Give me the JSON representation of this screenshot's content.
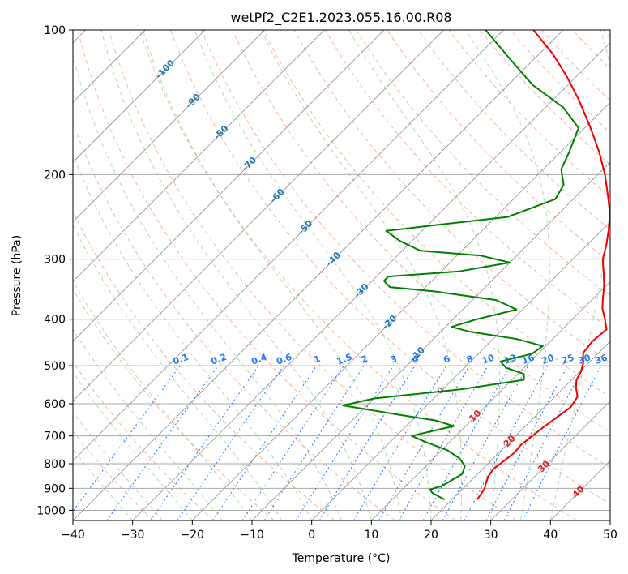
{
  "chart_data": {
    "type": "line",
    "title": "wetPf2_C2E1.2023.055.16.00.R08",
    "xlabel": "Temperature (°C)",
    "ylabel": "Pressure (hPa)",
    "xlim": [
      -40,
      50
    ],
    "ylim_hpa": [
      1050,
      100
    ],
    "y_scale": "log",
    "skew_degrees": 45,
    "x_ticks": [
      -40,
      -30,
      -20,
      -10,
      0,
      10,
      20,
      30,
      40,
      50
    ],
    "y_ticks": [
      100,
      200,
      300,
      400,
      500,
      600,
      700,
      800,
      900,
      1000
    ],
    "grid": true,
    "colors": {
      "temperature": "#ee0000",
      "dewpoint": "#008000",
      "isotherm": "#8c8c8c",
      "dry_adiabat": "#f4a37f",
      "moist_adiabat": "#77c777",
      "mixing_ratio": "#1e78ff",
      "pressure_grid": "#aaaaaa"
    },
    "series": [
      {
        "role": "temperature",
        "points": [
          {
            "p": 950,
            "t": 24.2
          },
          {
            "p": 930,
            "t": 24.0
          },
          {
            "p": 900,
            "t": 23.6
          },
          {
            "p": 880,
            "t": 23.0
          },
          {
            "p": 850,
            "t": 22.2
          },
          {
            "p": 820,
            "t": 21.8
          },
          {
            "p": 790,
            "t": 22.2
          },
          {
            "p": 760,
            "t": 22.6
          },
          {
            "p": 730,
            "t": 22.4
          },
          {
            "p": 700,
            "t": 22.8
          },
          {
            "p": 670,
            "t": 23.2
          },
          {
            "p": 640,
            "t": 23.8
          },
          {
            "p": 610,
            "t": 24.4
          },
          {
            "p": 580,
            "t": 23.8
          },
          {
            "p": 555,
            "t": 22.0
          },
          {
            "p": 535,
            "t": 20.8
          },
          {
            "p": 515,
            "t": 20.2
          },
          {
            "p": 495,
            "t": 19.2
          },
          {
            "p": 470,
            "t": 17.4
          },
          {
            "p": 445,
            "t": 17.0
          },
          {
            "p": 420,
            "t": 17.4
          },
          {
            "p": 400,
            "t": 15.4
          },
          {
            "p": 380,
            "t": 13.2
          },
          {
            "p": 360,
            "t": 11.4
          },
          {
            "p": 340,
            "t": 9.6
          },
          {
            "p": 320,
            "t": 7.4
          },
          {
            "p": 300,
            "t": 5.0
          },
          {
            "p": 280,
            "t": 3.2
          },
          {
            "p": 260,
            "t": 1.0
          },
          {
            "p": 240,
            "t": -1.6
          },
          {
            "p": 220,
            "t": -5.0
          },
          {
            "p": 200,
            "t": -8.8
          },
          {
            "p": 180,
            "t": -13.4
          },
          {
            "p": 160,
            "t": -19.0
          },
          {
            "p": 140,
            "t": -25.6
          },
          {
            "p": 125,
            "t": -31.6
          },
          {
            "p": 112,
            "t": -37.8
          },
          {
            "p": 100,
            "t": -45.0
          }
        ]
      },
      {
        "role": "dewpoint",
        "points": [
          {
            "p": 950,
            "t": 18.8
          },
          {
            "p": 935,
            "t": 17.2
          },
          {
            "p": 920,
            "t": 15.6
          },
          {
            "p": 905,
            "t": 14.6
          },
          {
            "p": 890,
            "t": 16.0
          },
          {
            "p": 870,
            "t": 16.6
          },
          {
            "p": 840,
            "t": 17.4
          },
          {
            "p": 810,
            "t": 16.6
          },
          {
            "p": 780,
            "t": 14.4
          },
          {
            "p": 750,
            "t": 11.0
          },
          {
            "p": 720,
            "t": 5.8
          },
          {
            "p": 700,
            "t": 2.6
          },
          {
            "p": 685,
            "t": 5.0
          },
          {
            "p": 668,
            "t": 8.0
          },
          {
            "p": 650,
            "t": 4.0
          },
          {
            "p": 630,
            "t": -4.0
          },
          {
            "p": 605,
            "t": -14.0
          },
          {
            "p": 585,
            "t": -10.0
          },
          {
            "p": 560,
            "t": 3.0
          },
          {
            "p": 535,
            "t": 12.0
          },
          {
            "p": 520,
            "t": 11.0
          },
          {
            "p": 505,
            "t": 7.0
          },
          {
            "p": 490,
            "t": 5.0
          },
          {
            "p": 472,
            "t": 9.0
          },
          {
            "p": 455,
            "t": 9.5
          },
          {
            "p": 440,
            "t": 4.0
          },
          {
            "p": 425,
            "t": -5.0
          },
          {
            "p": 415,
            "t": -9.0
          },
          {
            "p": 400,
            "t": -6.0
          },
          {
            "p": 382,
            "t": -1.0
          },
          {
            "p": 365,
            "t": -6.0
          },
          {
            "p": 350,
            "t": -18.0
          },
          {
            "p": 343,
            "t": -26.0
          },
          {
            "p": 333,
            "t": -28.0
          },
          {
            "p": 326,
            "t": -28.0
          },
          {
            "p": 318,
            "t": -17.0
          },
          {
            "p": 305,
            "t": -10.0
          },
          {
            "p": 295,
            "t": -16.0
          },
          {
            "p": 288,
            "t": -27.0
          },
          {
            "p": 275,
            "t": -32.0
          },
          {
            "p": 262,
            "t": -36.0
          },
          {
            "p": 255,
            "t": -29.0
          },
          {
            "p": 245,
            "t": -18.0
          },
          {
            "p": 225,
            "t": -13.0
          },
          {
            "p": 210,
            "t": -14.0
          },
          {
            "p": 195,
            "t": -17.0
          },
          {
            "p": 180,
            "t": -18.5
          },
          {
            "p": 160,
            "t": -21.0
          },
          {
            "p": 145,
            "t": -27.0
          },
          {
            "p": 130,
            "t": -36.0
          },
          {
            "p": 115,
            "t": -44.0
          },
          {
            "p": 100,
            "t": -53.0
          }
        ]
      }
    ],
    "isotherm_labels": [
      {
        "t": -100,
        "text": "-100"
      },
      {
        "t": -90,
        "text": "-90"
      },
      {
        "t": -80,
        "text": "-80"
      },
      {
        "t": -70,
        "text": "-70"
      },
      {
        "t": -60,
        "text": "-60"
      },
      {
        "t": -50,
        "text": "-50"
      },
      {
        "t": -40,
        "text": "-40"
      },
      {
        "t": -30,
        "text": "-30"
      },
      {
        "t": -20,
        "text": "-20"
      },
      {
        "t": -10,
        "text": "-10"
      },
      {
        "t": 0,
        "text": "0"
      },
      {
        "t": 10,
        "text": "10"
      },
      {
        "t": 20,
        "text": "20"
      },
      {
        "t": 30,
        "text": "30"
      },
      {
        "t": 40,
        "text": "40"
      }
    ],
    "mixing_ratio_labels": [
      "0.1",
      "0.2",
      "0.4",
      "0.6",
      "1",
      "1.5",
      "2",
      "3",
      "4",
      "6",
      "8",
      "10",
      "13",
      "16",
      "20",
      "25",
      "30",
      "36"
    ]
  }
}
